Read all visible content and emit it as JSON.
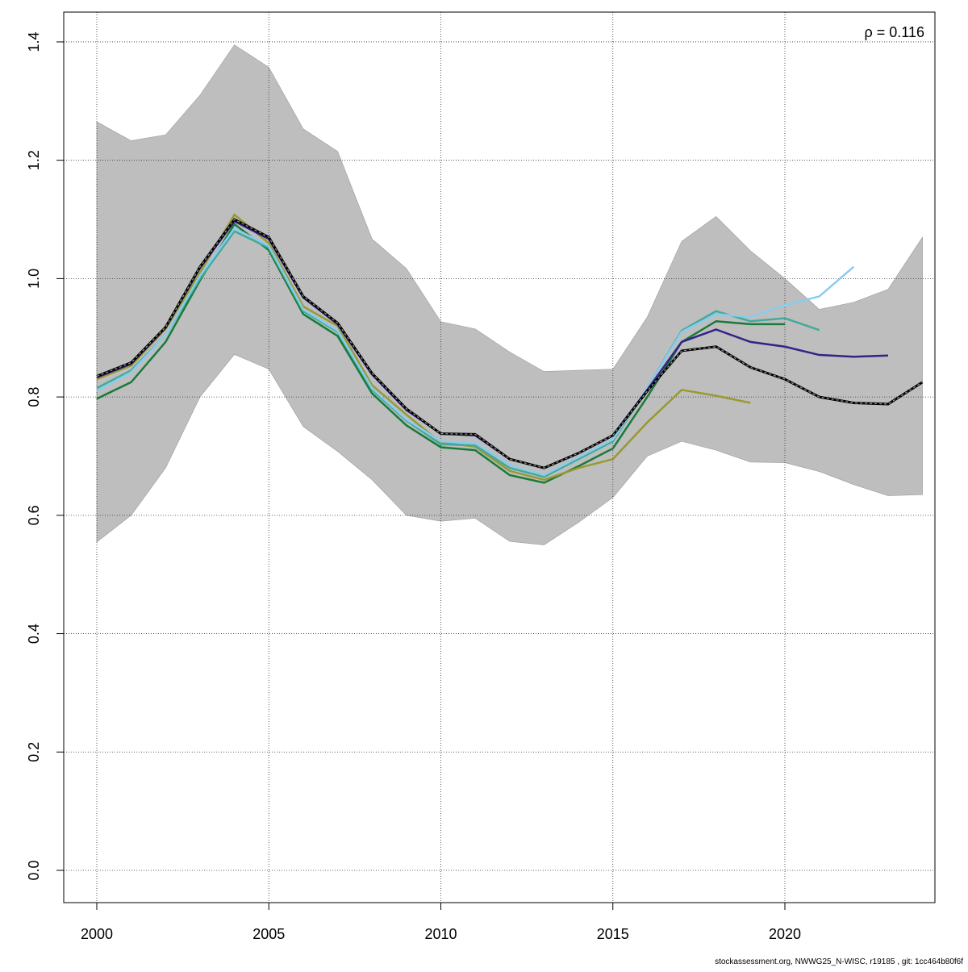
{
  "chart_data": {
    "type": "line",
    "annotation": "ρ = 0.116",
    "xlim": [
      1999,
      2025
    ],
    "ylim": [
      -0.05,
      1.45
    ],
    "grid": true,
    "x_ticks": [
      2000,
      2005,
      2010,
      2015,
      2020
    ],
    "x_tick_labels": [
      "2000",
      "2005",
      "2010",
      "2015",
      "2020"
    ],
    "y_ticks": [
      0,
      0.2,
      0.4,
      0.6,
      0.8,
      1.0,
      1.2,
      1.4
    ],
    "y_tick_labels": [
      "0.0",
      "0.2",
      "0.4",
      "0.6",
      "0.8",
      "1.0",
      "1.2",
      "1.4"
    ],
    "band": {
      "color": "#bebebe",
      "x": [
        2000,
        2001,
        2002,
        2003,
        2004,
        2005,
        2006,
        2007,
        2008,
        2009,
        2010,
        2011,
        2012,
        2013,
        2014,
        2015,
        2016,
        2017,
        2018,
        2019,
        2020,
        2021,
        2022,
        2023,
        2024
      ],
      "upper": [
        1.265,
        1.233,
        1.243,
        1.31,
        1.395,
        1.357,
        1.253,
        1.215,
        1.067,
        1.017,
        0.927,
        0.915,
        0.876,
        0.843,
        0.845,
        0.847,
        0.935,
        1.063,
        1.105,
        1.047,
        1.0,
        0.948,
        0.96,
        0.982,
        1.07
      ],
      "lower": [
        0.555,
        0.6,
        0.68,
        0.8,
        0.872,
        0.847,
        0.75,
        0.708,
        0.66,
        0.6,
        0.59,
        0.595,
        0.556,
        0.55,
        0.588,
        0.63,
        0.7,
        0.725,
        0.71,
        0.69,
        0.689,
        0.674,
        0.652,
        0.633,
        0.635
      ]
    },
    "x_start": 2000,
    "series": [
      {
        "color": "#1a7a3a",
        "dashed": false,
        "values": [
          0.797,
          0.825,
          0.893,
          0.997,
          1.092,
          1.048,
          0.94,
          0.903,
          0.806,
          0.752,
          0.715,
          0.71,
          0.668,
          0.655,
          0.683,
          0.713,
          0.8,
          0.893,
          0.928,
          0.923,
          0.923
        ]
      },
      {
        "color": "#999933",
        "dashed": false,
        "values": [
          0.83,
          0.853,
          0.915,
          1.01,
          1.108,
          1.06,
          0.953,
          0.92,
          0.82,
          0.77,
          0.723,
          0.716,
          0.675,
          0.66,
          0.68,
          0.695,
          0.757,
          0.812,
          0.802,
          0.79
        ]
      },
      {
        "color": "#44aa99",
        "dashed": false,
        "values": [
          0.815,
          0.845,
          0.905,
          1.0,
          1.08,
          1.052,
          0.945,
          0.91,
          0.812,
          0.76,
          0.72,
          0.718,
          0.68,
          0.665,
          0.695,
          0.725,
          0.815,
          0.912,
          0.945,
          0.928,
          0.933,
          0.913
        ]
      },
      {
        "color": "#88ccee",
        "dashed": false,
        "values": [
          0.81,
          0.842,
          0.905,
          1.005,
          1.085,
          1.055,
          0.948,
          0.912,
          0.815,
          0.762,
          0.725,
          0.722,
          0.685,
          0.668,
          0.698,
          0.728,
          0.815,
          0.91,
          0.94,
          0.935,
          0.955,
          0.97,
          1.02
        ]
      },
      {
        "color": "#332288",
        "dashed": false,
        "values": [
          0.833,
          0.856,
          0.917,
          1.018,
          1.097,
          1.067,
          0.968,
          0.923,
          0.838,
          0.778,
          0.738,
          0.735,
          0.695,
          0.68,
          0.705,
          0.735,
          0.812,
          0.893,
          0.914,
          0.893,
          0.885,
          0.871,
          0.868,
          0.87
        ]
      },
      {
        "color": "#000000",
        "dashed": true,
        "values": [
          0.835,
          0.858,
          0.918,
          1.02,
          1.1,
          1.07,
          0.97,
          0.925,
          0.84,
          0.78,
          0.738,
          0.737,
          0.695,
          0.68,
          0.705,
          0.735,
          0.81,
          0.878,
          0.885,
          0.85,
          0.83,
          0.8,
          0.79,
          0.788,
          0.825
        ]
      }
    ]
  },
  "footer": "stockassessment.org, NWWG25_N-WISC, r19185 , git: 1cc464b80f6f"
}
